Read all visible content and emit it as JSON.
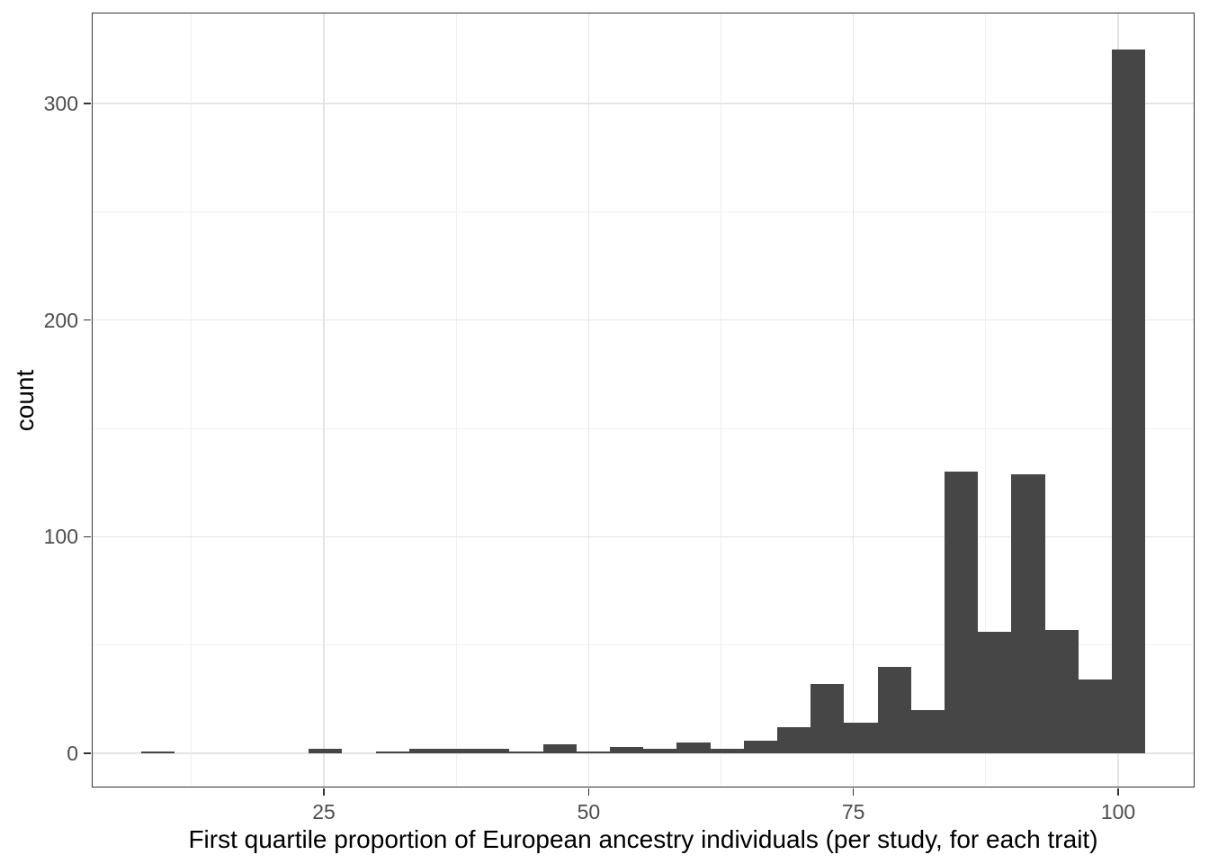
{
  "chart_data": {
    "type": "bar",
    "subtype": "histogram",
    "title": "",
    "xlabel": "First quartile proportion of European ancestry individuals (per study, for each trait)",
    "ylabel": "count",
    "bin_start": 7.77,
    "bin_width": 3.16,
    "counts": [
      1,
      0,
      0,
      0,
      0,
      2,
      0,
      1,
      2,
      2,
      2,
      1,
      4,
      1,
      3,
      2,
      5,
      2,
      6,
      12,
      32,
      14,
      40,
      20,
      130,
      56,
      129,
      57,
      34,
      325
    ],
    "bin_centers": [
      9.35,
      12.51,
      15.67,
      18.83,
      21.99,
      25.15,
      28.31,
      31.47,
      34.63,
      37.79,
      40.95,
      44.11,
      47.27,
      50.43,
      53.59,
      56.75,
      59.91,
      63.07,
      66.23,
      69.39,
      72.55,
      75.71,
      78.87,
      82.03,
      85.19,
      88.35,
      91.51,
      94.67,
      97.83,
      100.99
    ],
    "x_ticks": [
      25,
      50,
      75,
      100
    ],
    "y_ticks": [
      0,
      100,
      200,
      300
    ],
    "x_minor_ticks": [
      12.5,
      37.5,
      62.5,
      87.5
    ],
    "y_minor_ticks": [
      50,
      150,
      250
    ],
    "x_domain": [
      3.08,
      107.22
    ],
    "y_domain": [
      -15.8,
      342
    ],
    "grid": true,
    "legend_position": "none",
    "colors": {
      "bar_fill": "#464646",
      "grid_major": "#e4e4e4",
      "grid_minor": "#f0f0f0",
      "panel_border": "#333333",
      "tick_label": "#4d4d4d",
      "axis_title": "#000000",
      "background": "#ffffff"
    }
  }
}
